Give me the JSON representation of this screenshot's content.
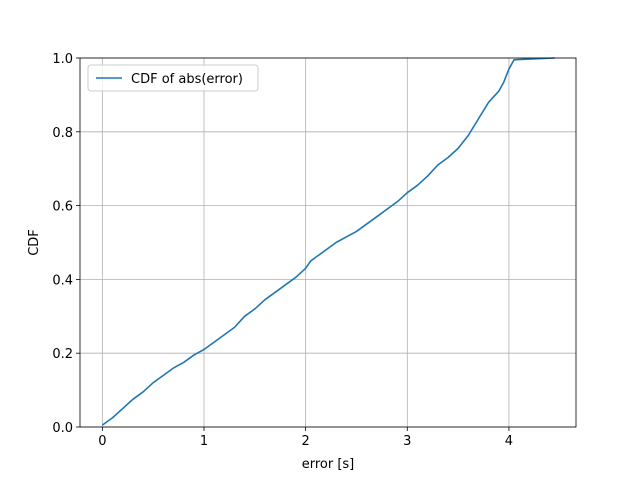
{
  "chart_data": {
    "type": "line",
    "title": "",
    "xlabel": "error [s]",
    "ylabel": "CDF",
    "xlim": [
      -0.22,
      4.66
    ],
    "ylim": [
      0.0,
      1.0
    ],
    "xticks": [
      0,
      1,
      2,
      3,
      4
    ],
    "xtick_labels": [
      "0",
      "1",
      "2",
      "3",
      "4"
    ],
    "yticks": [
      0.0,
      0.2,
      0.4,
      0.6,
      0.8,
      1.0
    ],
    "ytick_labels": [
      "0.0",
      "0.2",
      "0.4",
      "0.6",
      "0.8",
      "1.0"
    ],
    "grid": true,
    "legend_position": "upper-left",
    "series": [
      {
        "name": "CDF of abs(error)",
        "color": "#1f77b4",
        "x": [
          0.0,
          0.1,
          0.2,
          0.3,
          0.4,
          0.5,
          0.6,
          0.7,
          0.8,
          0.9,
          1.0,
          1.1,
          1.2,
          1.3,
          1.35,
          1.4,
          1.5,
          1.6,
          1.7,
          1.8,
          1.9,
          2.0,
          2.05,
          2.1,
          2.2,
          2.3,
          2.4,
          2.5,
          2.6,
          2.7,
          2.8,
          2.9,
          3.0,
          3.1,
          3.2,
          3.25,
          3.3,
          3.4,
          3.5,
          3.6,
          3.7,
          3.8,
          3.9,
          3.95,
          4.0,
          4.05,
          4.2,
          4.45
        ],
        "y": [
          0.005,
          0.025,
          0.05,
          0.075,
          0.095,
          0.12,
          0.14,
          0.16,
          0.175,
          0.195,
          0.21,
          0.23,
          0.25,
          0.27,
          0.285,
          0.3,
          0.32,
          0.345,
          0.365,
          0.385,
          0.405,
          0.43,
          0.45,
          0.46,
          0.48,
          0.5,
          0.515,
          0.53,
          0.55,
          0.57,
          0.59,
          0.61,
          0.635,
          0.655,
          0.68,
          0.695,
          0.71,
          0.73,
          0.755,
          0.79,
          0.835,
          0.88,
          0.91,
          0.935,
          0.97,
          0.995,
          0.997,
          1.0
        ]
      }
    ]
  }
}
